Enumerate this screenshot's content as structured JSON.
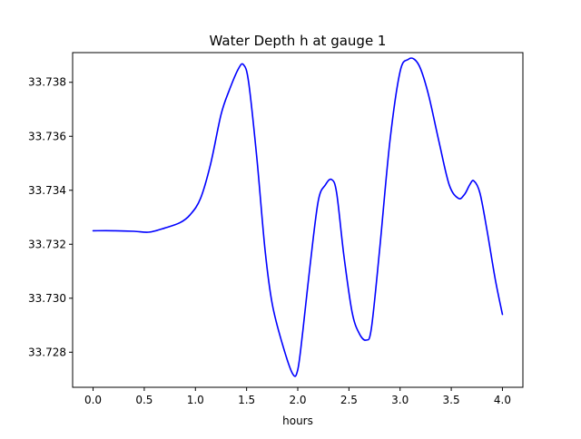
{
  "chart_data": {
    "type": "line",
    "title": "Water Depth h at gauge 1",
    "xlabel": "hours",
    "ylabel": "",
    "xlim": [
      -0.2,
      4.2
    ],
    "ylim": [
      33.7267,
      33.7391
    ],
    "xticks": [
      0.0,
      0.5,
      1.0,
      1.5,
      2.0,
      2.5,
      3.0,
      3.5,
      4.0
    ],
    "xtick_labels": [
      "0.0",
      "0.5",
      "1.0",
      "1.5",
      "2.0",
      "2.5",
      "3.0",
      "3.5",
      "4.0"
    ],
    "yticks": [
      33.728,
      33.73,
      33.732,
      33.734,
      33.736,
      33.738
    ],
    "ytick_labels": [
      "33.728",
      "33.730",
      "33.732",
      "33.734",
      "33.736",
      "33.738"
    ],
    "grid": false,
    "series": [
      {
        "color": "#0000ff",
        "x": [
          0.0,
          0.2,
          0.4,
          0.55,
          0.7,
          0.85,
          0.95,
          1.05,
          1.15,
          1.25,
          1.33,
          1.42,
          1.47,
          1.52,
          1.6,
          1.68,
          1.75,
          1.85,
          1.95,
          2.0,
          2.05,
          2.12,
          2.2,
          2.27,
          2.33,
          2.38,
          2.45,
          2.53,
          2.6,
          2.67,
          2.72,
          2.8,
          2.9,
          3.0,
          3.08,
          3.14,
          3.2,
          3.28,
          3.38,
          3.48,
          3.57,
          3.63,
          3.68,
          3.72,
          3.78,
          3.85,
          3.93,
          4.0
        ],
        "y": [
          33.7325,
          33.7325,
          33.73248,
          33.73245,
          33.7326,
          33.7328,
          33.7331,
          33.7337,
          33.735,
          33.7368,
          33.7377,
          33.7385,
          33.73865,
          33.738,
          33.7352,
          33.7318,
          33.7298,
          33.7283,
          33.7272,
          33.72735,
          33.7288,
          33.7312,
          33.7336,
          33.7342,
          33.7344,
          33.7339,
          33.7316,
          33.7295,
          33.7287,
          33.72845,
          33.7289,
          33.7318,
          33.7358,
          33.7384,
          33.73885,
          33.73885,
          33.7385,
          33.7375,
          33.7358,
          33.7342,
          33.7337,
          33.73385,
          33.7342,
          33.73435,
          33.7339,
          33.7325,
          33.7307,
          33.7294
        ]
      }
    ]
  }
}
